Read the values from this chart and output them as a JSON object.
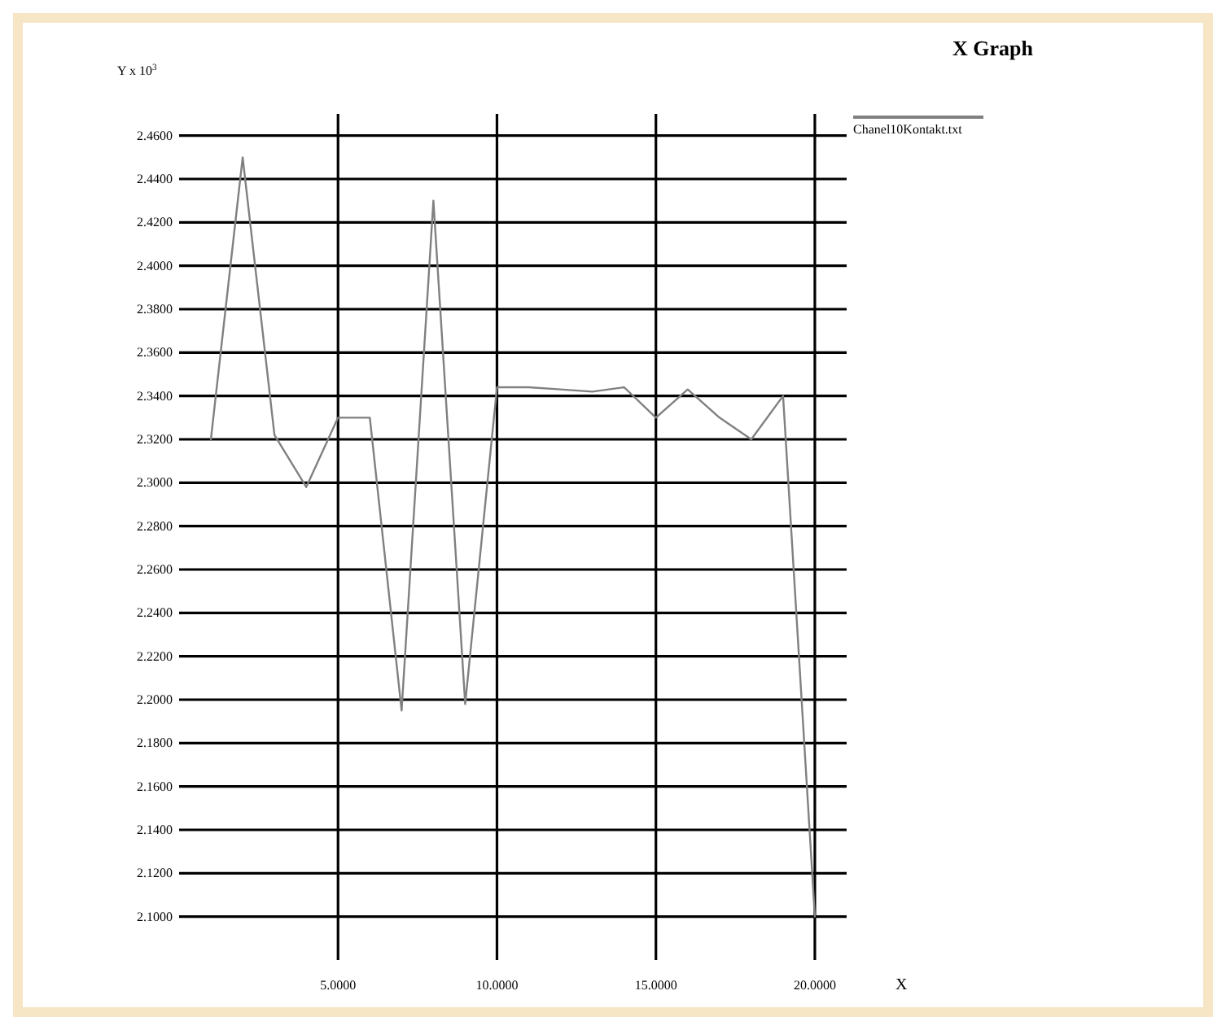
{
  "chart_data": {
    "type": "line",
    "title": "X Graph",
    "xlabel": "X",
    "ylabel": "Y x 10$^{3}$",
    "x": [
      1,
      2,
      3,
      4,
      5,
      6,
      7,
      8,
      9,
      10,
      11,
      12,
      13,
      14,
      15,
      16,
      17,
      18,
      19,
      20
    ],
    "series": [
      {
        "name": "Chanel10Kontakt.txt",
        "color": "#808080",
        "values": [
          2.32,
          2.45,
          2.322,
          2.298,
          2.33,
          2.33,
          2.195,
          2.43,
          2.198,
          2.344,
          2.344,
          2.343,
          2.342,
          2.344,
          2.33,
          2.343,
          2.33,
          2.32,
          2.34,
          2.1
        ]
      }
    ],
    "xlim": [
      0,
      21
    ],
    "ylim": [
      2.08,
      2.47
    ],
    "xticks": [
      {
        "value": 5,
        "label": "5.0000"
      },
      {
        "value": 10,
        "label": "10.0000"
      },
      {
        "value": 15,
        "label": "15.0000"
      },
      {
        "value": 20,
        "label": "20.0000"
      }
    ],
    "yticks": [
      {
        "value": 2.1,
        "label": "2.1000"
      },
      {
        "value": 2.12,
        "label": "2.1200"
      },
      {
        "value": 2.14,
        "label": "2.1400"
      },
      {
        "value": 2.16,
        "label": "2.1600"
      },
      {
        "value": 2.18,
        "label": "2.1800"
      },
      {
        "value": 2.2,
        "label": "2.2000"
      },
      {
        "value": 2.22,
        "label": "2.2200"
      },
      {
        "value": 2.24,
        "label": "2.2400"
      },
      {
        "value": 2.26,
        "label": "2.2600"
      },
      {
        "value": 2.28,
        "label": "2.2800"
      },
      {
        "value": 2.3,
        "label": "2.3000"
      },
      {
        "value": 2.32,
        "label": "2.3200"
      },
      {
        "value": 2.34,
        "label": "2.3400"
      },
      {
        "value": 2.36,
        "label": "2.3600"
      },
      {
        "value": 2.38,
        "label": "2.3800"
      },
      {
        "value": 2.4,
        "label": "2.4000"
      },
      {
        "value": 2.42,
        "label": "2.4200"
      },
      {
        "value": 2.44,
        "label": "2.4400"
      },
      {
        "value": 2.46,
        "label": "2.4600"
      }
    ],
    "grid": true,
    "legend": "top right",
    "marker": "none",
    "line_style": "solid"
  }
}
